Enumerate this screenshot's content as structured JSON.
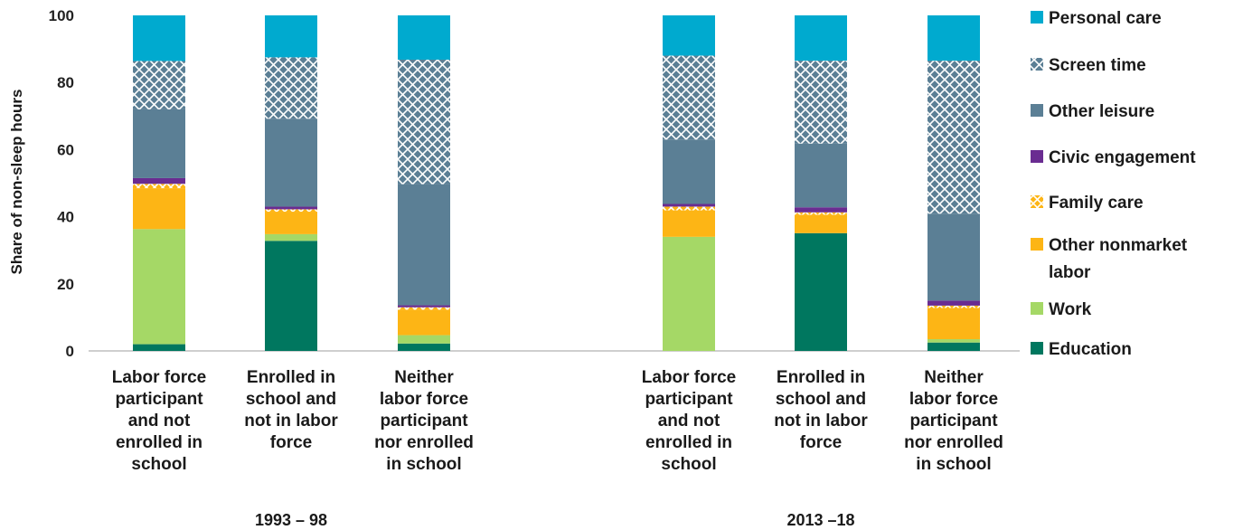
{
  "chart_data": {
    "type": "bar",
    "stacked": true,
    "ylabel": "Share of non-sleep hours",
    "ylim": [
      0,
      100
    ],
    "yticks": [
      0,
      20,
      40,
      60,
      80,
      100
    ],
    "grid": false,
    "legend_position": "right",
    "groups": [
      {
        "label": "1993 – 98",
        "categories": [
          [
            "Labor force",
            "participant",
            "and not",
            "enrolled in",
            "school"
          ],
          [
            "Enrolled in",
            "school and",
            "not in labor",
            "force"
          ],
          [
            "Neither",
            "labor force",
            "participant",
            "nor enrolled",
            "in school"
          ]
        ]
      },
      {
        "label": "2013 –18",
        "categories": [
          [
            "Labor force",
            "participant",
            "and not",
            "enrolled in",
            "school"
          ],
          [
            "Enrolled in",
            "school and",
            "not in labor",
            "force"
          ],
          [
            "Neither",
            "labor force",
            "participant",
            "nor enrolled",
            "in school"
          ]
        ]
      }
    ],
    "series": [
      {
        "name": "Education",
        "color": "#00775F",
        "pattern": "solid",
        "values": [
          2.0,
          32.8,
          2.2,
          0.0,
          35.1,
          2.5
        ]
      },
      {
        "name": "Work",
        "color": "#A5D866",
        "pattern": "solid",
        "values": [
          34.3,
          2.0,
          2.5,
          34.0,
          0.0,
          1.0
        ]
      },
      {
        "name": "Other nonmarket labor",
        "legend_lines": [
          "Other nonmarket",
          "labor"
        ],
        "color": "#FDB515",
        "pattern": "solid",
        "values": [
          12.2,
          6.7,
          7.6,
          7.9,
          5.5,
          9.3
        ]
      },
      {
        "name": "Family care",
        "color": "#FDB515",
        "pattern": "crosshatch",
        "values": [
          1.3,
          0.7,
          0.7,
          1.1,
          0.7,
          0.7
        ]
      },
      {
        "name": "Civic engagement",
        "color": "#6A2C91",
        "pattern": "solid",
        "values": [
          1.7,
          0.8,
          0.6,
          0.8,
          1.5,
          1.5
        ]
      },
      {
        "name": "Other leisure",
        "color": "#5B7F95",
        "pattern": "solid",
        "values": [
          20.5,
          26.2,
          36.1,
          19.2,
          19.0,
          25.9
        ]
      },
      {
        "name": "Screen time",
        "color": "#5B7F95",
        "pattern": "crosshatch",
        "values": [
          14.4,
          18.3,
          37.1,
          25.0,
          24.7,
          45.6
        ]
      },
      {
        "name": "Personal care",
        "color": "#00AACF",
        "pattern": "solid",
        "values": [
          13.6,
          12.5,
          13.2,
          12.0,
          13.5,
          13.5
        ]
      }
    ]
  }
}
